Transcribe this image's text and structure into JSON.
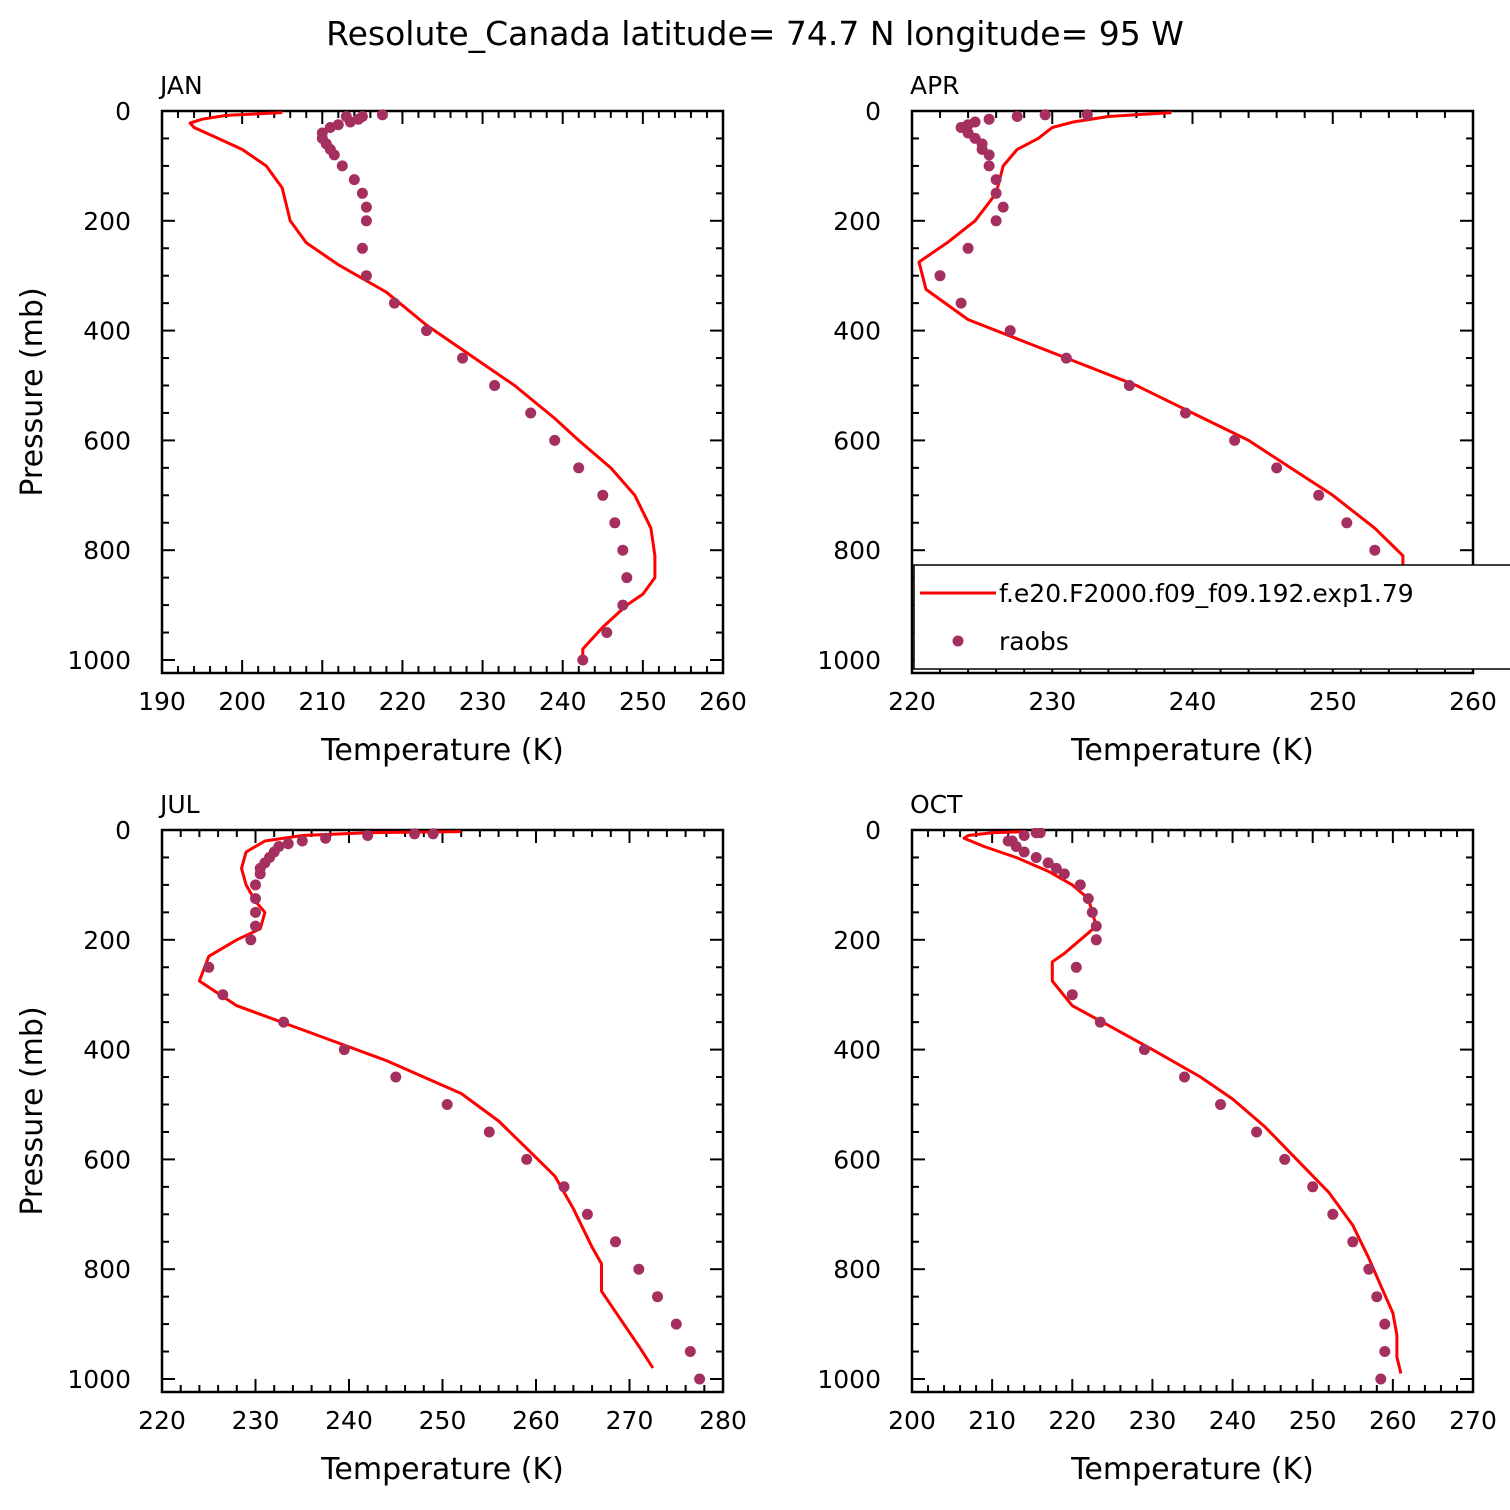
{
  "figure": {
    "title": "Resolute_Canada  latitude= 74.7 N longitude= 95 W"
  },
  "legend": {
    "model_label": "f.e20.F2000.f09_f09.192.exp1.79",
    "obs_label": "raobs"
  },
  "colors": {
    "model_line": "#ff0000",
    "obs_marker": "#a5305f"
  },
  "chart_data": [
    {
      "type": "line",
      "panel": "JAN",
      "xlabel": "Temperature (K)",
      "ylabel": "Pressure (mb)",
      "xlim": [
        190,
        260
      ],
      "ylim": [
        1000,
        0
      ],
      "xticks": [
        190,
        200,
        210,
        220,
        230,
        240,
        250,
        260
      ],
      "yticks": [
        0,
        200,
        400,
        600,
        800,
        1000
      ],
      "grid": false,
      "legend": false,
      "series": [
        {
          "name": "f.e20.F2000.f09_f09.192.exp1.79",
          "style": "line",
          "points": [
            [
              205,
              3
            ],
            [
              198,
              8
            ],
            [
              195,
              15
            ],
            [
              193.5,
              22
            ],
            [
              194,
              30
            ],
            [
              197,
              50
            ],
            [
              200,
              70
            ],
            [
              203,
              100
            ],
            [
              205,
              140
            ],
            [
              206,
              200
            ],
            [
              208,
              240
            ],
            [
              212,
              280
            ],
            [
              218,
              330
            ],
            [
              223,
              390
            ],
            [
              229,
              450
            ],
            [
              234,
              500
            ],
            [
              239,
              560
            ],
            [
              242,
              600
            ],
            [
              246,
              650
            ],
            [
              249,
              700
            ],
            [
              251,
              760
            ],
            [
              251.5,
              810
            ],
            [
              251.5,
              850
            ],
            [
              250,
              880
            ],
            [
              248,
              900
            ],
            [
              245,
              940
            ],
            [
              242.5,
              980
            ],
            [
              242.5,
              1000
            ]
          ]
        },
        {
          "name": "raobs",
          "style": "markers",
          "points": [
            [
              217.5,
              7
            ],
            [
              215,
              10
            ],
            [
              213,
              10
            ],
            [
              214.5,
              15
            ],
            [
              213.5,
              20
            ],
            [
              212,
              25
            ],
            [
              211,
              30
            ],
            [
              210,
              40
            ],
            [
              210,
              50
            ],
            [
              210.5,
              60
            ],
            [
              211,
              70
            ],
            [
              211.5,
              80
            ],
            [
              212.5,
              100
            ],
            [
              214,
              125
            ],
            [
              215,
              150
            ],
            [
              215.5,
              175
            ],
            [
              215.5,
              200
            ],
            [
              215,
              250
            ],
            [
              215.5,
              300
            ],
            [
              219,
              350
            ],
            [
              223,
              400
            ],
            [
              227.5,
              450
            ],
            [
              231.5,
              500
            ],
            [
              236,
              550
            ],
            [
              239,
              600
            ],
            [
              242,
              650
            ],
            [
              245,
              700
            ],
            [
              246.5,
              750
            ],
            [
              247.5,
              800
            ],
            [
              248,
              850
            ],
            [
              247.5,
              900
            ],
            [
              245.5,
              950
            ],
            [
              242.5,
              1000
            ]
          ]
        }
      ]
    },
    {
      "type": "line",
      "panel": "APR",
      "xlabel": "Temperature (K)",
      "ylabel": "",
      "xlim": [
        220,
        260
      ],
      "ylim": [
        1000,
        0
      ],
      "xticks": [
        220,
        230,
        240,
        250,
        260
      ],
      "yticks": [
        0,
        200,
        400,
        600,
        800,
        1000
      ],
      "grid": false,
      "legend": true,
      "series": [
        {
          "name": "f.e20.F2000.f09_f09.192.exp1.79",
          "style": "line",
          "points": [
            [
              238.5,
              3
            ],
            [
              234,
              10
            ],
            [
              231.5,
              20
            ],
            [
              230,
              30
            ],
            [
              229,
              50
            ],
            [
              227.5,
              70
            ],
            [
              226.5,
              100
            ],
            [
              226,
              150
            ],
            [
              224.5,
              200
            ],
            [
              222.5,
              240
            ],
            [
              220.5,
              275
            ],
            [
              221,
              325
            ],
            [
              224,
              380
            ],
            [
              228,
              420
            ],
            [
              232,
              460
            ],
            [
              236,
              500
            ],
            [
              240,
              550
            ],
            [
              244,
              600
            ],
            [
              247,
              650
            ],
            [
              250,
              700
            ],
            [
              253,
              760
            ],
            [
              255,
              810
            ],
            [
              255,
              860
            ],
            [
              253,
              900
            ],
            [
              250,
              940
            ],
            [
              248,
              970
            ],
            [
              248,
              1000
            ]
          ]
        },
        {
          "name": "raobs",
          "style": "markers",
          "points": [
            [
              232.5,
              7
            ],
            [
              229.5,
              7
            ],
            [
              227.5,
              10
            ],
            [
              225.5,
              15
            ],
            [
              224.5,
              20
            ],
            [
              224,
              25
            ],
            [
              223.5,
              30
            ],
            [
              224,
              40
            ],
            [
              224.5,
              50
            ],
            [
              225,
              60
            ],
            [
              225,
              70
            ],
            [
              225.5,
              80
            ],
            [
              225.5,
              100
            ],
            [
              226,
              125
            ],
            [
              226,
              150
            ],
            [
              226.5,
              175
            ],
            [
              226,
              200
            ],
            [
              224,
              250
            ],
            [
              222,
              300
            ],
            [
              223.5,
              350
            ],
            [
              227,
              400
            ],
            [
              231,
              450
            ],
            [
              235.5,
              500
            ],
            [
              239.5,
              550
            ],
            [
              243,
              600
            ],
            [
              246,
              650
            ],
            [
              249,
              700
            ],
            [
              251,
              750
            ],
            [
              253,
              800
            ],
            [
              254,
              850
            ],
            [
              254,
              900
            ],
            [
              253,
              950
            ],
            [
              251,
              1000
            ]
          ]
        }
      ]
    },
    {
      "type": "line",
      "panel": "JUL",
      "xlabel": "Temperature (K)",
      "ylabel": "Pressure (mb)",
      "xlim": [
        220,
        280
      ],
      "ylim": [
        1000,
        0
      ],
      "xticks": [
        220,
        230,
        240,
        250,
        260,
        270,
        280
      ],
      "yticks": [
        0,
        200,
        400,
        600,
        800,
        1000
      ],
      "grid": false,
      "legend": false,
      "series": [
        {
          "name": "f.e20.F2000.f09_f09.192.exp1.79",
          "style": "line",
          "points": [
            [
              252,
              3
            ],
            [
              242,
              5
            ],
            [
              235,
              10
            ],
            [
              231,
              20
            ],
            [
              229,
              40
            ],
            [
              228.5,
              70
            ],
            [
              229,
              100
            ],
            [
              230,
              130
            ],
            [
              231,
              150
            ],
            [
              230.5,
              180
            ],
            [
              228,
              200
            ],
            [
              225,
              230
            ],
            [
              224,
              275
            ],
            [
              228,
              320
            ],
            [
              236,
              370
            ],
            [
              244,
              420
            ],
            [
              252,
              480
            ],
            [
              256,
              530
            ],
            [
              259,
              580
            ],
            [
              262,
              630
            ],
            [
              264,
              690
            ],
            [
              266,
              760
            ],
            [
              267,
              790
            ],
            [
              267,
              840
            ],
            [
              269,
              890
            ],
            [
              271,
              940
            ],
            [
              272.5,
              980
            ]
          ]
        },
        {
          "name": "raobs",
          "style": "markers",
          "points": [
            [
              249,
              7
            ],
            [
              247,
              7
            ],
            [
              242,
              10
            ],
            [
              237.5,
              15
            ],
            [
              235,
              20
            ],
            [
              233.5,
              25
            ],
            [
              232.5,
              30
            ],
            [
              232,
              40
            ],
            [
              231.5,
              50
            ],
            [
              231,
              60
            ],
            [
              230.5,
              70
            ],
            [
              230.5,
              80
            ],
            [
              230,
              100
            ],
            [
              230,
              125
            ],
            [
              230,
              150
            ],
            [
              230,
              175
            ],
            [
              229.5,
              200
            ],
            [
              225,
              250
            ],
            [
              226.5,
              300
            ],
            [
              233,
              350
            ],
            [
              239.5,
              400
            ],
            [
              245,
              450
            ],
            [
              250.5,
              500
            ],
            [
              255,
              550
            ],
            [
              259,
              600
            ],
            [
              263,
              650
            ],
            [
              265.5,
              700
            ],
            [
              268.5,
              750
            ],
            [
              271,
              800
            ],
            [
              273,
              850
            ],
            [
              275,
              900
            ],
            [
              276.5,
              950
            ],
            [
              277.5,
              1000
            ]
          ]
        }
      ]
    },
    {
      "type": "line",
      "panel": "OCT",
      "xlabel": "Temperature (K)",
      "ylabel": "",
      "xlim": [
        200,
        270
      ],
      "ylim": [
        1000,
        0
      ],
      "xticks": [
        200,
        210,
        220,
        230,
        240,
        250,
        260,
        270
      ],
      "yticks": [
        0,
        200,
        400,
        600,
        800,
        1000
      ],
      "grid": false,
      "legend": false,
      "series": [
        {
          "name": "f.e20.F2000.f09_f09.192.exp1.79",
          "style": "line",
          "points": [
            [
              214,
              3
            ],
            [
              210,
              5
            ],
            [
              207,
              10
            ],
            [
              206.5,
              15
            ],
            [
              209,
              30
            ],
            [
              213,
              50
            ],
            [
              217,
              75
            ],
            [
              220,
              100
            ],
            [
              222,
              125
            ],
            [
              222.5,
              150
            ],
            [
              223,
              175
            ],
            [
              221,
              200
            ],
            [
              219,
              225
            ],
            [
              217.5,
              240
            ],
            [
              217.5,
              275
            ],
            [
              220,
              320
            ],
            [
              225,
              360
            ],
            [
              230,
              400
            ],
            [
              236,
              450
            ],
            [
              240,
              490
            ],
            [
              244,
              540
            ],
            [
              248,
              600
            ],
            [
              252,
              660
            ],
            [
              255,
              720
            ],
            [
              257,
              780
            ],
            [
              258.5,
              830
            ],
            [
              260,
              880
            ],
            [
              260.5,
              920
            ],
            [
              260.5,
              960
            ],
            [
              261,
              990
            ]
          ]
        },
        {
          "name": "raobs",
          "style": "markers",
          "points": [
            [
              216,
              5
            ],
            [
              215.5,
              5
            ],
            [
              214,
              10
            ],
            [
              212.5,
              20
            ],
            [
              212,
              20
            ],
            [
              213,
              30
            ],
            [
              214,
              40
            ],
            [
              215.5,
              50
            ],
            [
              217,
              60
            ],
            [
              218,
              70
            ],
            [
              219,
              80
            ],
            [
              221,
              100
            ],
            [
              222,
              125
            ],
            [
              222.5,
              150
            ],
            [
              223,
              175
            ],
            [
              223,
              200
            ],
            [
              220.5,
              250
            ],
            [
              220,
              300
            ],
            [
              223.5,
              350
            ],
            [
              229,
              400
            ],
            [
              234,
              450
            ],
            [
              238.5,
              500
            ],
            [
              243,
              550
            ],
            [
              246.5,
              600
            ],
            [
              250,
              650
            ],
            [
              252.5,
              700
            ],
            [
              255,
              750
            ],
            [
              257,
              800
            ],
            [
              258,
              850
            ],
            [
              259,
              900
            ],
            [
              259,
              950
            ],
            [
              258.5,
              1000
            ]
          ]
        }
      ]
    }
  ]
}
